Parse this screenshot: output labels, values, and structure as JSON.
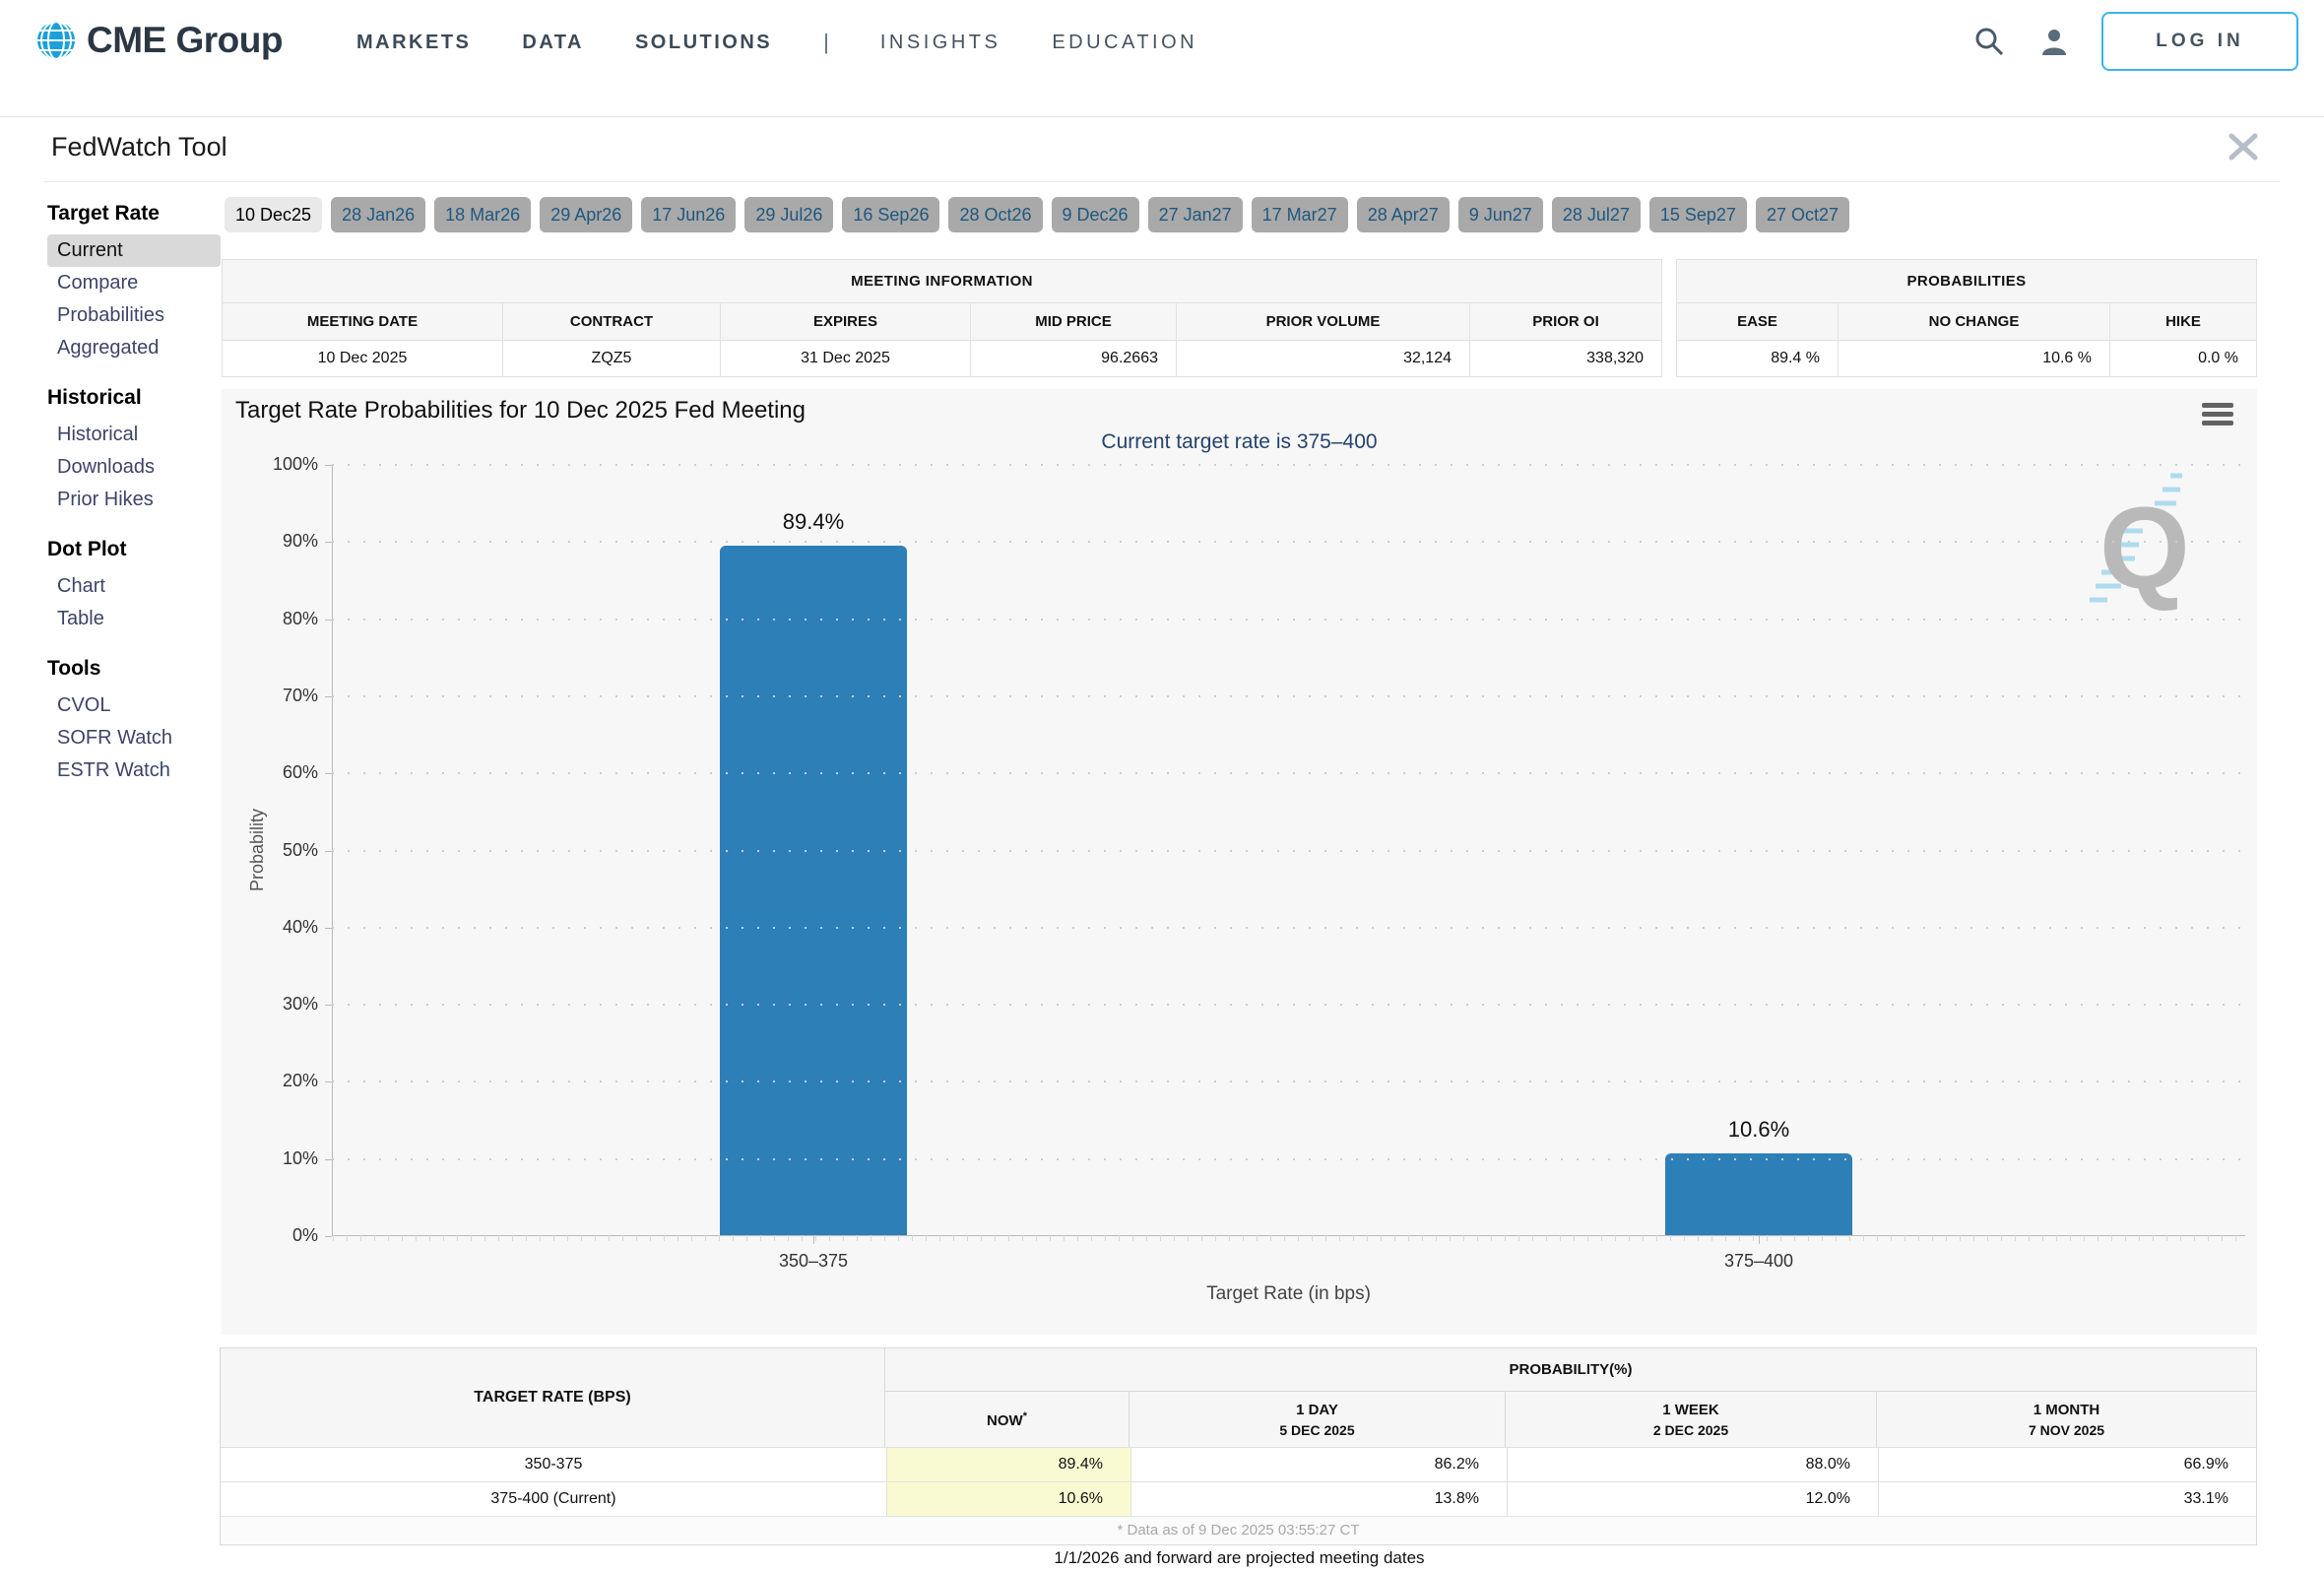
{
  "header": {
    "brand": "CME Group",
    "nav_primary": [
      "MARKETS",
      "DATA",
      "SOLUTIONS"
    ],
    "nav_separator": "|",
    "nav_secondary": [
      "INSIGHTS",
      "EDUCATION"
    ],
    "login_label": "LOG IN"
  },
  "toolbar": {
    "title": "FedWatch Tool"
  },
  "sidebar": {
    "active": "Current",
    "sections": [
      {
        "title": "Target Rate",
        "items": [
          "Current",
          "Compare",
          "Probabilities",
          "Aggregated"
        ]
      },
      {
        "title": "Historical",
        "items": [
          "Historical",
          "Downloads",
          "Prior Hikes"
        ]
      },
      {
        "title": "Dot Plot",
        "items": [
          "Chart",
          "Table"
        ]
      },
      {
        "title": "Tools",
        "items": [
          "CVOL",
          "SOFR Watch",
          "ESTR Watch"
        ]
      }
    ]
  },
  "tabs": {
    "selected": "10 Dec25",
    "items": [
      "10 Dec25",
      "28 Jan26",
      "18 Mar26",
      "29 Apr26",
      "17 Jun26",
      "29 Jul26",
      "16 Sep26",
      "28 Oct26",
      "9 Dec26",
      "27 Jan27",
      "17 Mar27",
      "28 Apr27",
      "9 Jun27",
      "28 Jul27",
      "15 Sep27",
      "27 Oct27"
    ]
  },
  "meeting_info": {
    "title": "MEETING INFORMATION",
    "columns": [
      "MEETING DATE",
      "CONTRACT",
      "EXPIRES",
      "MID PRICE",
      "PRIOR VOLUME",
      "PRIOR OI"
    ],
    "values": [
      "10 Dec 2025",
      "ZQZ5",
      "31 Dec 2025",
      "96.2663",
      "32,124",
      "338,320"
    ]
  },
  "probabilities_summary": {
    "title": "PROBABILITIES",
    "columns": [
      "EASE",
      "NO CHANGE",
      "HIKE"
    ],
    "values": [
      "89.4 %",
      "10.6 %",
      "0.0 %"
    ]
  },
  "chart_data": {
    "type": "bar",
    "title": "Target Rate Probabilities for 10 Dec 2025 Fed Meeting",
    "subtitle": "Current target rate is 375–400",
    "categories": [
      "350–375",
      "375–400"
    ],
    "values": [
      89.4,
      10.6
    ],
    "bar_labels": [
      "89.4%",
      "10.6%"
    ],
    "xlabel": "Target Rate (in bps)",
    "ylabel": "Probability",
    "ylim": [
      0,
      100
    ],
    "yticks": [
      0,
      10,
      20,
      30,
      40,
      50,
      60,
      70,
      80,
      90,
      100
    ],
    "ytick_suffix": "%",
    "grid": "dotted-horizontal",
    "legend": "none",
    "bar_color": "#2d7fb8",
    "watermark": "Q"
  },
  "probability_table": {
    "rate_header": "TARGET RATE (BPS)",
    "group_header": "PROBABILITY(%)",
    "columns": [
      {
        "line1": "NOW",
        "sup": "*"
      },
      {
        "line1": "1 DAY",
        "line2": "5 DEC 2025"
      },
      {
        "line1": "1 WEEK",
        "line2": "2 DEC 2025"
      },
      {
        "line1": "1 MONTH",
        "line2": "7 NOV 2025"
      }
    ],
    "rows": [
      {
        "rate": "350-375",
        "values": [
          "89.4%",
          "86.2%",
          "88.0%",
          "66.9%"
        ]
      },
      {
        "rate": "375-400 (Current)",
        "values": [
          "10.6%",
          "13.8%",
          "12.0%",
          "33.1%"
        ]
      }
    ],
    "footnote": "* Data as of 9 Dec 2025 03:55:27 CT",
    "now_highlight": "#fafad2"
  },
  "note": "1/1/2026 and forward are projected meeting dates"
}
